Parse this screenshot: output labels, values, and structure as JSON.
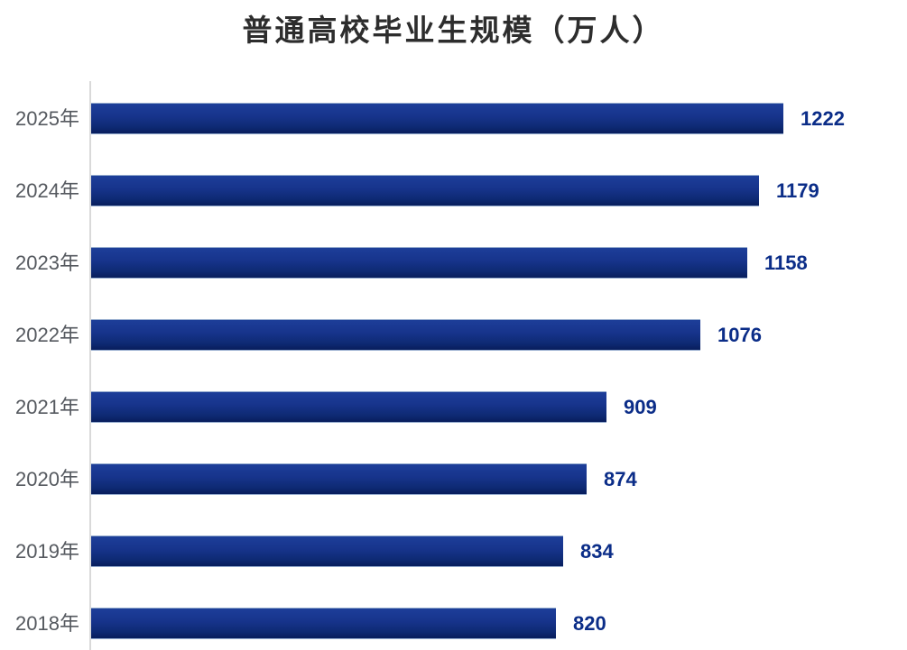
{
  "chart_data": {
    "type": "bar",
    "orientation": "horizontal",
    "title": "普通高校毕业生规模（万人）",
    "categories": [
      "2025年",
      "2024年",
      "2023年",
      "2022年",
      "2021年",
      "2020年",
      "2019年",
      "2018年"
    ],
    "values": [
      1222,
      1179,
      1158,
      1076,
      909,
      874,
      834,
      820
    ],
    "unit": "万人",
    "value_labels_position": "outside-end",
    "grid": false,
    "legend": false,
    "xlim": [
      0,
      1440
    ],
    "colors": {
      "bar": "#12308a",
      "bar_edge_highlight": "#93aacd",
      "value_label": "#0b2d88",
      "axis_label": "#55595f",
      "axis_line": "#d9d9d9",
      "title": "#2d2d2d",
      "background": "#ffffff"
    }
  }
}
